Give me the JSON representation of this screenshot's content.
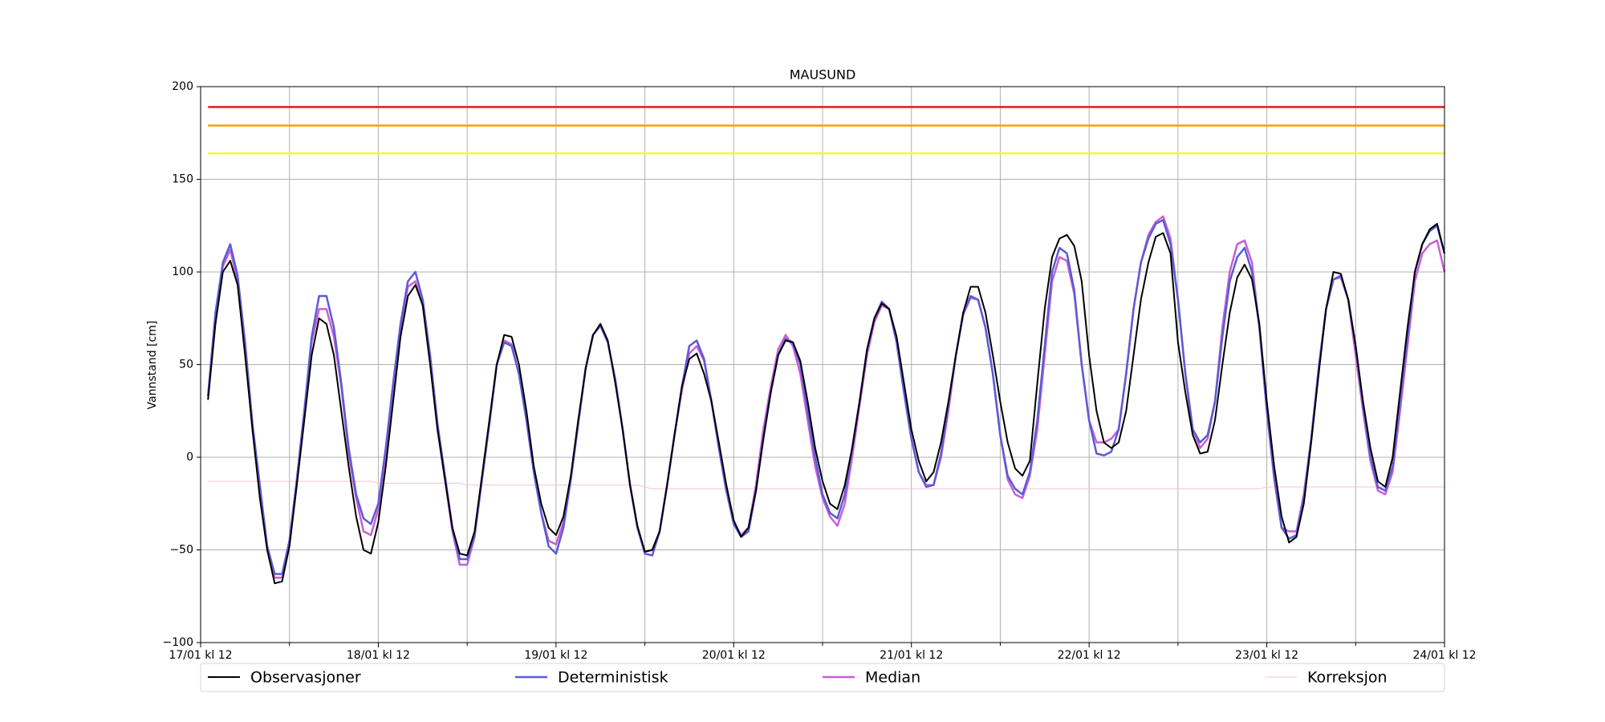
{
  "chart_data": {
    "type": "line",
    "title": "MAUSUND",
    "y_label": "Vannstand [cm]",
    "x": [
      "17/01 kl 13",
      "17/01 kl 14",
      "17/01 kl 15",
      "17/01 kl 16",
      "17/01 kl 17",
      "17/01 kl 18",
      "17/01 kl 19",
      "17/01 kl 20",
      "17/01 kl 21",
      "17/01 kl 22",
      "17/01 kl 23",
      "18/01 kl 00",
      "18/01 kl 01",
      "18/01 kl 02",
      "18/01 kl 03",
      "18/01 kl 04",
      "18/01 kl 05",
      "18/01 kl 06",
      "18/01 kl 07",
      "18/01 kl 08",
      "18/01 kl 09",
      "18/01 kl 10",
      "18/01 kl 11",
      "18/01 kl 12",
      "18/01 kl 13",
      "18/01 kl 14",
      "18/01 kl 15",
      "18/01 kl 16",
      "18/01 kl 17",
      "18/01 kl 18",
      "18/01 kl 19",
      "18/01 kl 20",
      "18/01 kl 21",
      "18/01 kl 22",
      "18/01 kl 23",
      "19/01 kl 00",
      "19/01 kl 01",
      "19/01 kl 02",
      "19/01 kl 03",
      "19/01 kl 04",
      "19/01 kl 05",
      "19/01 kl 06",
      "19/01 kl 07",
      "19/01 kl 08",
      "19/01 kl 09",
      "19/01 kl 10",
      "19/01 kl 11",
      "19/01 kl 12",
      "19/01 kl 13",
      "19/01 kl 14",
      "19/01 kl 15",
      "19/01 kl 16",
      "19/01 kl 17",
      "19/01 kl 18",
      "19/01 kl 19",
      "19/01 kl 20",
      "19/01 kl 21",
      "19/01 kl 22",
      "19/01 kl 23",
      "20/01 kl 00",
      "20/01 kl 01",
      "20/01 kl 02",
      "20/01 kl 03",
      "20/01 kl 04",
      "20/01 kl 05",
      "20/01 kl 06",
      "20/01 kl 07",
      "20/01 kl 08",
      "20/01 kl 09",
      "20/01 kl 10",
      "20/01 kl 11",
      "20/01 kl 12",
      "20/01 kl 13",
      "20/01 kl 14",
      "20/01 kl 15",
      "20/01 kl 16",
      "20/01 kl 17",
      "20/01 kl 18",
      "20/01 kl 19",
      "20/01 kl 20",
      "20/01 kl 21",
      "20/01 kl 22",
      "20/01 kl 23",
      "21/01 kl 00",
      "21/01 kl 01",
      "21/01 kl 02",
      "21/01 kl 03",
      "21/01 kl 04",
      "21/01 kl 05",
      "21/01 kl 06",
      "21/01 kl 07",
      "21/01 kl 08",
      "21/01 kl 09",
      "21/01 kl 10",
      "21/01 kl 11",
      "21/01 kl 12",
      "21/01 kl 13",
      "21/01 kl 14",
      "21/01 kl 15",
      "21/01 kl 16",
      "21/01 kl 17",
      "21/01 kl 18",
      "21/01 kl 19",
      "21/01 kl 20",
      "21/01 kl 21",
      "21/01 kl 22",
      "21/01 kl 23",
      "22/01 kl 00",
      "22/01 kl 01",
      "22/01 kl 02",
      "22/01 kl 03",
      "22/01 kl 04",
      "22/01 kl 05",
      "22/01 kl 06",
      "22/01 kl 07",
      "22/01 kl 08",
      "22/01 kl 09",
      "22/01 kl 10",
      "22/01 kl 11",
      "22/01 kl 12",
      "22/01 kl 13",
      "22/01 kl 14",
      "22/01 kl 15",
      "22/01 kl 16",
      "22/01 kl 17",
      "22/01 kl 18",
      "22/01 kl 19",
      "22/01 kl 20",
      "22/01 kl 21",
      "22/01 kl 22",
      "22/01 kl 23",
      "23/01 kl 00",
      "23/01 kl 01",
      "23/01 kl 02",
      "23/01 kl 03",
      "23/01 kl 04",
      "23/01 kl 05",
      "23/01 kl 06",
      "23/01 kl 07",
      "23/01 kl 08",
      "23/01 kl 09",
      "23/01 kl 10",
      "23/01 kl 11",
      "23/01 kl 12",
      "23/01 kl 13",
      "23/01 kl 14",
      "23/01 kl 15",
      "23/01 kl 16",
      "23/01 kl 17",
      "23/01 kl 18",
      "23/01 kl 19",
      "23/01 kl 20",
      "23/01 kl 21",
      "23/01 kl 22",
      "23/01 kl 23",
      "24/01 kl 00",
      "24/01 kl 01",
      "24/01 kl 02",
      "24/01 kl 03",
      "24/01 kl 04",
      "24/01 kl 05",
      "24/01 kl 06",
      "24/01 kl 07",
      "24/01 kl 08",
      "24/01 kl 09",
      "24/01 kl 10",
      "24/01 kl 11",
      "24/01 kl 12"
    ],
    "series": [
      {
        "name": "Observasjoner",
        "color": "#000000",
        "width": 2,
        "values": [
          31,
          72,
          100,
          106,
          93,
          55,
          15,
          -22,
          -50,
          -68,
          -67,
          -48,
          -15,
          20,
          55,
          75,
          72,
          55,
          25,
          -5,
          -32,
          -50,
          -52,
          -35,
          -5,
          30,
          65,
          87,
          93,
          82,
          50,
          15,
          -12,
          -38,
          -52,
          -53,
          -40,
          -10,
          20,
          50,
          66,
          65,
          50,
          25,
          -5,
          -25,
          -38,
          -42,
          -32,
          -10,
          20,
          48,
          66,
          72,
          63,
          40,
          15,
          -15,
          -37,
          -51,
          -50,
          -40,
          -15,
          12,
          38,
          53,
          56,
          45,
          30,
          8,
          -15,
          -34,
          -43,
          -38,
          -18,
          10,
          35,
          55,
          63,
          62,
          52,
          30,
          5,
          -13,
          -25,
          -28,
          -15,
          5,
          30,
          58,
          75,
          83,
          80,
          65,
          40,
          15,
          -2,
          -13,
          -8,
          8,
          30,
          55,
          78,
          92,
          92,
          78,
          55,
          30,
          8,
          -6,
          -10,
          -2,
          40,
          80,
          108,
          118,
          120,
          114,
          95,
          55,
          25,
          8,
          5,
          8,
          25,
          55,
          85,
          105,
          119,
          121,
          110,
          62,
          35,
          12,
          2,
          3,
          20,
          50,
          78,
          97,
          104,
          96,
          72,
          30,
          -5,
          -32,
          -46,
          -43,
          -25,
          8,
          45,
          80,
          100,
          99,
          85,
          60,
          30,
          5,
          -13,
          -16,
          0,
          35,
          70,
          100,
          115,
          123,
          126,
          110
        ]
      },
      {
        "name": "Deterministisk",
        "color": "#5b5bd6",
        "width": 2.5,
        "values": [
          33,
          78,
          105,
          115,
          98,
          62,
          18,
          -15,
          -48,
          -63,
          -63,
          -45,
          -12,
          25,
          65,
          87,
          87,
          70,
          40,
          5,
          -20,
          -33,
          -36,
          -25,
          5,
          40,
          72,
          95,
          100,
          85,
          55,
          18,
          -10,
          -38,
          -55,
          -55,
          -42,
          -12,
          18,
          50,
          62,
          60,
          45,
          20,
          -8,
          -30,
          -48,
          -52,
          -38,
          -12,
          18,
          48,
          66,
          71,
          62,
          42,
          15,
          -15,
          -38,
          -52,
          -53,
          -40,
          -15,
          12,
          38,
          60,
          63,
          53,
          30,
          5,
          -18,
          -36,
          -43,
          -40,
          -18,
          10,
          35,
          55,
          64,
          62,
          50,
          25,
          0,
          -20,
          -30,
          -33,
          -20,
          5,
          30,
          58,
          75,
          84,
          80,
          62,
          35,
          10,
          -8,
          -16,
          -15,
          2,
          28,
          55,
          78,
          87,
          85,
          70,
          45,
          12,
          -10,
          -17,
          -20,
          -8,
          20,
          60,
          100,
          113,
          110,
          90,
          50,
          20,
          2,
          1,
          3,
          15,
          45,
          80,
          105,
          118,
          126,
          128,
          115,
          85,
          45,
          15,
          8,
          12,
          30,
          65,
          95,
          108,
          113,
          100,
          70,
          25,
          -10,
          -38,
          -44,
          -42,
          -22,
          10,
          48,
          80,
          96,
          98,
          85,
          60,
          28,
          0,
          -16,
          -18,
          -5,
          30,
          65,
          100,
          115,
          122,
          125,
          110
        ]
      },
      {
        "name": "Median",
        "color": "#c85fd8",
        "width": 2.5,
        "values": [
          33,
          78,
          103,
          112,
          95,
          60,
          15,
          -18,
          -50,
          -65,
          -65,
          -45,
          -12,
          25,
          62,
          80,
          80,
          65,
          38,
          2,
          -22,
          -40,
          -42,
          -28,
          2,
          38,
          70,
          92,
          95,
          82,
          52,
          15,
          -12,
          -40,
          -58,
          -58,
          -43,
          -12,
          18,
          50,
          63,
          61,
          45,
          20,
          -8,
          -30,
          -45,
          -47,
          -35,
          -12,
          18,
          48,
          66,
          71,
          62,
          42,
          15,
          -15,
          -38,
          -51,
          -50,
          -40,
          -15,
          12,
          36,
          56,
          60,
          52,
          30,
          5,
          -18,
          -35,
          -42,
          -38,
          -15,
          15,
          38,
          58,
          66,
          60,
          45,
          20,
          -5,
          -22,
          -32,
          -37,
          -25,
          0,
          28,
          55,
          73,
          82,
          80,
          62,
          35,
          10,
          -8,
          -15,
          -15,
          0,
          25,
          55,
          77,
          86,
          85,
          70,
          45,
          12,
          -12,
          -20,
          -22,
          -10,
          15,
          55,
          95,
          108,
          106,
          88,
          50,
          20,
          8,
          8,
          10,
          15,
          45,
          80,
          105,
          120,
          127,
          130,
          118,
          85,
          45,
          15,
          5,
          10,
          30,
          70,
          100,
          115,
          117,
          105,
          70,
          25,
          -12,
          -38,
          -40,
          -40,
          -20,
          10,
          48,
          80,
          96,
          97,
          85,
          55,
          25,
          -2,
          -18,
          -20,
          -8,
          25,
          60,
          95,
          110,
          115,
          117,
          100
        ]
      },
      {
        "name": "Korreksjon",
        "color": "#f2c4cc",
        "width": 1,
        "values": [
          -13,
          -13,
          -13,
          -13,
          -13,
          -13,
          -13,
          -13,
          -13,
          -13,
          -13,
          -13,
          -13,
          -13,
          -13,
          -13,
          -13,
          -13,
          -13,
          -13,
          -13,
          -13,
          -13,
          -14,
          -14,
          -14,
          -14,
          -14,
          -14,
          -14,
          -14,
          -14,
          -14,
          -14,
          -14,
          -15,
          -15,
          -15,
          -15,
          -15,
          -15,
          -15,
          -15,
          -15,
          -15,
          -15,
          -15,
          -15,
          -15,
          -15,
          -15,
          -15,
          -15,
          -15,
          -15,
          -15,
          -15,
          -15,
          -15,
          -16,
          -17,
          -17,
          -17,
          -17,
          -17,
          -17,
          -17,
          -17,
          -17,
          -17,
          -17,
          -17,
          -17,
          -17,
          -17,
          -17,
          -17,
          -17,
          -17,
          -17,
          -17,
          -17,
          -17,
          -17,
          -17,
          -17,
          -17,
          -17,
          -17,
          -17,
          -17,
          -17,
          -17,
          -17,
          -17,
          -17,
          -17,
          -17,
          -17,
          -17,
          -17,
          -17,
          -17,
          -17,
          -17,
          -17,
          -17,
          -17,
          -17,
          -17,
          -17,
          -17,
          -17,
          -17,
          -17,
          -17,
          -17,
          -17,
          -17,
          -17,
          -17,
          -17,
          -17,
          -17,
          -17,
          -17,
          -17,
          -17,
          -17,
          -17,
          -17,
          -17,
          -17,
          -17,
          -17,
          -17,
          -17,
          -17,
          -17,
          -17,
          -17,
          -17,
          -17,
          -16,
          -16,
          -16,
          -16,
          -16,
          -16,
          -16,
          -16,
          -16,
          -16,
          -16,
          -16,
          -16,
          -16,
          -16,
          -16,
          -16,
          -16,
          -16,
          -16,
          -16,
          -16,
          -16,
          -16,
          -16
        ]
      }
    ],
    "thresholds": [
      {
        "value": 189,
        "color": "#e8191b"
      },
      {
        "value": 179,
        "color": "#f5a00f"
      },
      {
        "value": 164,
        "color": "#f5f53c"
      }
    ],
    "xlim": [
      "17/01 kl 12",
      "24/01 kl 12"
    ],
    "xticks": [
      "17/01 kl 12",
      "18/01 kl 12",
      "19/01 kl 12",
      "20/01 kl 12",
      "21/01 kl 12",
      "22/01 kl 12",
      "23/01 kl 12",
      "24/01 kl 12"
    ],
    "ylim": [
      -100,
      200
    ],
    "yticks": [
      {
        "value": -100,
        "label": "−100"
      },
      {
        "value": -50,
        "label": "−50"
      },
      0,
      50,
      100,
      150,
      200
    ],
    "grid": true,
    "legend": "below"
  }
}
